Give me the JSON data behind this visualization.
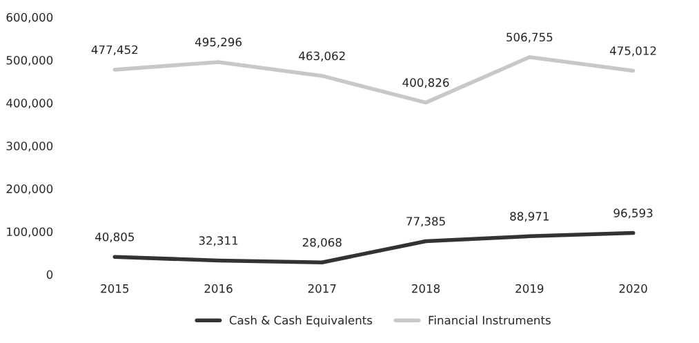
{
  "chart_data": {
    "type": "line",
    "categories": [
      "2015",
      "2016",
      "2017",
      "2018",
      "2019",
      "2020"
    ],
    "series": [
      {
        "name": "Cash & Cash Equivalents",
        "color": "#333333",
        "values": [
          40805,
          32311,
          28068,
          77385,
          88971,
          96593
        ],
        "value_labels": [
          "40,805",
          "32,311",
          "28,068",
          "77,385",
          "88,971",
          "96,593"
        ]
      },
      {
        "name": "Financial Instruments",
        "color": "#c8c8c8",
        "values": [
          477452,
          495296,
          463062,
          400826,
          506755,
          475012
        ],
        "value_labels": [
          "477,452",
          "495,296",
          "463,062",
          "400,826",
          "506,755",
          "475,012"
        ]
      }
    ],
    "ylim": [
      0,
      600000
    ],
    "yticks": [
      0,
      {
        "value": 100000,
        "label": "100,000"
      },
      {
        "value": 200000,
        "label": "200,000"
      },
      {
        "value": 300000,
        "label": "300,000"
      },
      {
        "value": 400000,
        "label": "400,000"
      },
      {
        "value": 500000,
        "label": "500,000"
      },
      {
        "value": 600000,
        "label": "600,000"
      }
    ],
    "legend": "bottom",
    "grid": false,
    "marker": "none",
    "line_style": "solid"
  }
}
